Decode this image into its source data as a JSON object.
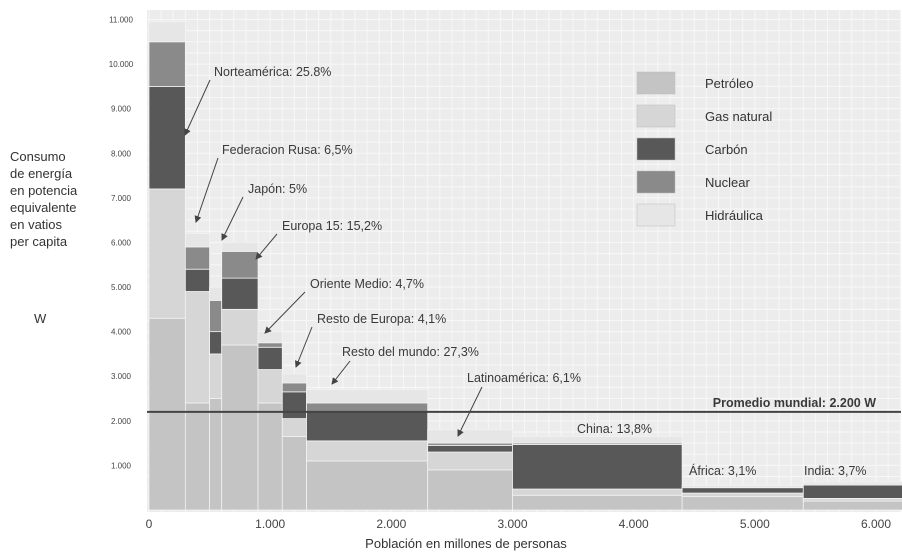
{
  "chart_data": {
    "type": "bar",
    "xlabel": "Población en millones de personas",
    "ylabel_lines": [
      "Consumo",
      "de energía",
      "en potencia",
      "equivalente",
      "en vatios",
      "per capita"
    ],
    "ylabel_unit": "W",
    "xlim": [
      0,
      6300
    ],
    "ylim": [
      0,
      11000
    ],
    "x_ticks": [
      "0",
      "1.000",
      "2.000",
      "3.000",
      "4.000",
      "5.000",
      "6.000"
    ],
    "x_tick_values": [
      0,
      1000,
      2000,
      3000,
      4000,
      5000,
      6000
    ],
    "y_ticks": [
      "1.000",
      "2.000",
      "3.000",
      "4.000",
      "5.000",
      "6.000",
      "7.000",
      "8.000",
      "9.000",
      "10.000",
      "11.000"
    ],
    "y_tick_values": [
      1000,
      2000,
      3000,
      4000,
      5000,
      6000,
      7000,
      8000,
      9000,
      10000,
      11000
    ],
    "series_names": [
      "Petróleo",
      "Gas natural",
      "Carbón",
      "Nuclear",
      "Hidráulica"
    ],
    "colors": [
      "#c4c4c4",
      "#d6d6d6",
      "#585858",
      "#8a8a8a",
      "#e6e6e6"
    ],
    "regions": [
      {
        "start": 0,
        "width": 300,
        "values": [
          4300,
          2900,
          2300,
          1000,
          450
        ]
      },
      {
        "start": 300,
        "width": 200,
        "values": [
          2400,
          2500,
          500,
          500,
          300
        ]
      },
      {
        "start": 500,
        "width": 100,
        "values": [
          2500,
          1000,
          500,
          700,
          300
        ]
      },
      {
        "start": 600,
        "width": 300,
        "values": [
          3700,
          800,
          700,
          600,
          200
        ]
      },
      {
        "start": 900,
        "width": 200,
        "values": [
          2400,
          750,
          500,
          100,
          250
        ]
      },
      {
        "start": 1100,
        "width": 200,
        "values": [
          1650,
          400,
          600,
          200,
          200
        ]
      },
      {
        "start": 1300,
        "width": 1000,
        "values": [
          1100,
          450,
          650,
          200,
          300
        ]
      },
      {
        "start": 2300,
        "width": 700,
        "values": [
          900,
          400,
          150,
          50,
          300
        ]
      },
      {
        "start": 3000,
        "width": 1400,
        "values": [
          330,
          140,
          1000,
          30,
          150
        ]
      },
      {
        "start": 4400,
        "width": 1000,
        "values": [
          300,
          80,
          120,
          0,
          50
        ]
      },
      {
        "start": 5400,
        "width": 900,
        "values": [
          200,
          60,
          300,
          20,
          50
        ]
      }
    ],
    "average_line": {
      "value": 2200,
      "label": "Promedio mundial: 2.200 W"
    },
    "annotations": [
      {
        "text": "Norteamérica: 25.8%",
        "region": 0
      },
      {
        "text": "Federacion Rusa: 6,5%",
        "region": 1
      },
      {
        "text": "Japón: 5%",
        "region": 2
      },
      {
        "text": "Europa 15: 15,2%",
        "region": 3
      },
      {
        "text": "Oriente Medio: 4,7%",
        "region": 4
      },
      {
        "text": "Resto de Europa: 4,1%",
        "region": 5
      },
      {
        "text": "Resto del mundo: 27,3%",
        "region": 6
      },
      {
        "text": "Latinoamérica: 6,1%",
        "region": 7
      },
      {
        "text": "China: 13,8%",
        "region": 8
      },
      {
        "text": "África: 3,1%",
        "region": 9
      },
      {
        "text": "India: 3,7%",
        "region": 10
      }
    ],
    "grid": true,
    "legend_position": "top-right"
  }
}
